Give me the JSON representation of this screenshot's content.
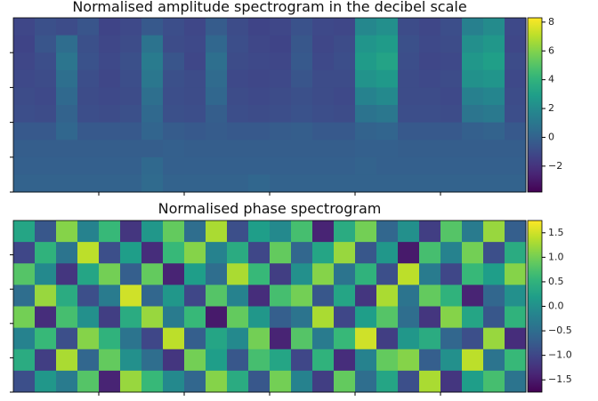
{
  "chart_data": [
    {
      "type": "heatmap",
      "title": "Normalised amplitude spectrogram in the decibel scale",
      "colormap": "viridis",
      "colorbar_lim": [
        -3.8,
        8.3
      ],
      "colorbar_ticks": [
        {
          "value": -2,
          "label": "−2"
        },
        0,
        2,
        4,
        6,
        8
      ],
      "values": [
        [
          -1.2,
          -0.8,
          -1.0,
          -0.6,
          -1.3,
          -1.1,
          -0.4,
          -0.9,
          -1.2,
          -0.3,
          -1.0,
          -1.3,
          -1.2,
          -0.7,
          -1.1,
          -1.2,
          1.8,
          2.2,
          -1.0,
          -1.2,
          -0.9,
          1.5,
          2.0,
          -1.1
        ],
        [
          -1.3,
          -0.6,
          0.5,
          -0.8,
          -1.2,
          -1.0,
          0.8,
          -1.0,
          -1.1,
          0.2,
          -0.9,
          -1.2,
          -1.3,
          -0.5,
          -1.2,
          -1.0,
          2.5,
          2.8,
          -0.8,
          -1.1,
          -1.0,
          2.2,
          2.6,
          -1.2
        ],
        [
          -1.2,
          -0.9,
          0.9,
          -0.7,
          -1.1,
          -0.8,
          1.2,
          -0.6,
          -1.2,
          0.6,
          -1.0,
          -1.1,
          -1.2,
          -0.4,
          -1.1,
          -0.9,
          2.8,
          3.2,
          -0.9,
          -1.2,
          -1.1,
          2.6,
          3.0,
          -1.0
        ],
        [
          -1.1,
          -1.0,
          0.6,
          -0.9,
          -1.2,
          -0.9,
          1.0,
          -0.8,
          -1.0,
          0.4,
          -1.1,
          -1.2,
          -1.1,
          -0.6,
          -1.0,
          -1.0,
          2.4,
          2.7,
          -1.0,
          -1.1,
          -1.0,
          2.3,
          2.5,
          -1.1
        ],
        [
          -1.0,
          -1.1,
          0.3,
          -1.0,
          -1.1,
          -1.0,
          0.6,
          -0.9,
          -1.0,
          0.2,
          -1.0,
          -1.1,
          -1.0,
          -0.8,
          -1.0,
          -1.1,
          1.6,
          1.9,
          -1.0,
          -1.0,
          -1.1,
          1.5,
          1.7,
          -1.0
        ],
        [
          -0.9,
          -1.0,
          0.0,
          -0.9,
          -1.0,
          -0.8,
          0.3,
          -0.8,
          -0.9,
          -0.2,
          -0.9,
          -1.0,
          -0.9,
          -0.7,
          -0.9,
          -1.0,
          0.8,
          1.0,
          -0.9,
          -0.9,
          -1.0,
          0.9,
          1.1,
          -0.9
        ],
        [
          -0.4,
          -0.4,
          0.2,
          -0.4,
          -0.4,
          -0.4,
          0.1,
          -0.3,
          -0.4,
          -0.3,
          -0.4,
          -0.4,
          -0.3,
          -0.2,
          -0.4,
          -0.4,
          0.0,
          0.1,
          -0.4,
          -0.4,
          -0.4,
          -0.1,
          0.0,
          -0.4
        ],
        [
          -0.2,
          -0.2,
          -0.2,
          -0.2,
          -0.2,
          -0.2,
          -0.2,
          -0.1,
          -0.2,
          -0.2,
          -0.2,
          -0.2,
          -0.2,
          -0.2,
          -0.2,
          -0.2,
          -0.1,
          -0.1,
          -0.2,
          -0.2,
          -0.2,
          -0.2,
          -0.2,
          -0.2
        ],
        [
          -0.1,
          -0.1,
          -0.1,
          -0.1,
          -0.1,
          -0.1,
          0.3,
          -0.1,
          -0.1,
          -0.1,
          -0.1,
          -0.1,
          -0.1,
          -0.1,
          -0.1,
          -0.1,
          0.0,
          -0.1,
          -0.1,
          -0.1,
          -0.1,
          -0.1,
          -0.1,
          -0.1
        ],
        [
          0.0,
          0.0,
          0.0,
          0.0,
          0.0,
          0.0,
          0.4,
          0.0,
          0.0,
          0.0,
          0.0,
          0.2,
          0.0,
          0.0,
          0.0,
          0.0,
          0.0,
          0.0,
          0.0,
          0.0,
          0.0,
          0.0,
          0.0,
          0.0
        ]
      ]
    },
    {
      "type": "heatmap",
      "title": "Normalised phase spectrogram",
      "colormap": "viridis",
      "colorbar_lim": [
        -1.75,
        1.75
      ],
      "colorbar_ticks": [
        {
          "value": -1.5,
          "label": "−1.5"
        },
        {
          "value": -1.0,
          "label": "−1.0"
        },
        {
          "value": -0.5,
          "label": "−0.5"
        },
        {
          "value": 0,
          "label": "0.0"
        },
        0.5,
        {
          "value": 1.0,
          "label": "1.0"
        },
        1.5
      ],
      "values": [
        [
          0.3,
          -0.8,
          1.1,
          -0.2,
          0.6,
          -1.2,
          0.1,
          0.9,
          -0.5,
          1.3,
          -0.9,
          0.2,
          -0.1,
          0.7,
          -1.4,
          0.4,
          1.0,
          -0.6,
          0.0,
          -1.1,
          0.8,
          -0.3,
          1.2,
          -0.7
        ],
        [
          -1.0,
          0.5,
          -0.4,
          1.4,
          -0.9,
          0.2,
          -1.3,
          0.6,
          1.1,
          -0.2,
          0.4,
          -1.0,
          0.9,
          -0.6,
          0.3,
          1.2,
          -0.8,
          0.1,
          -1.5,
          0.7,
          -0.2,
          1.0,
          -0.9,
          0.4
        ],
        [
          0.8,
          -0.1,
          -1.2,
          0.3,
          1.0,
          -0.7,
          0.9,
          -1.4,
          0.2,
          -0.5,
          1.3,
          0.6,
          -1.1,
          0.0,
          1.1,
          -0.4,
          0.5,
          -0.9,
          1.4,
          -0.3,
          -1.0,
          0.6,
          0.2,
          1.1
        ],
        [
          -0.5,
          1.2,
          0.4,
          -0.9,
          -0.3,
          1.5,
          -0.6,
          0.1,
          -1.0,
          0.8,
          -0.2,
          -1.3,
          0.7,
          1.0,
          -0.8,
          0.3,
          -1.2,
          1.3,
          -0.4,
          0.9,
          0.5,
          -1.4,
          -0.6,
          0.0
        ],
        [
          1.0,
          -1.3,
          0.7,
          0.0,
          -1.1,
          0.4,
          1.2,
          -0.3,
          0.6,
          -1.5,
          0.9,
          0.1,
          -0.7,
          -0.4,
          1.3,
          -1.0,
          0.2,
          0.8,
          -0.5,
          -1.2,
          1.1,
          0.3,
          -0.8,
          0.5
        ],
        [
          -0.2,
          0.6,
          -0.9,
          1.1,
          0.5,
          -0.4,
          -1.0,
          1.4,
          -0.7,
          0.3,
          -0.1,
          1.0,
          -1.4,
          0.8,
          -0.3,
          0.6,
          1.5,
          -1.1,
          0.1,
          0.4,
          -0.6,
          -0.9,
          1.2,
          -1.3
        ],
        [
          0.4,
          -1.1,
          1.3,
          -0.6,
          0.9,
          0.0,
          -0.5,
          -1.2,
          1.0,
          0.2,
          -0.8,
          0.7,
          0.3,
          -1.0,
          0.5,
          -1.3,
          -0.2,
          0.9,
          1.1,
          -0.7,
          0.0,
          1.4,
          -0.4,
          0.6
        ],
        [
          -0.9,
          0.1,
          -0.3,
          0.8,
          -1.4,
          1.2,
          0.6,
          -0.1,
          -0.6,
          1.1,
          0.4,
          -0.8,
          1.0,
          -0.2,
          -1.1,
          0.9,
          -0.5,
          0.3,
          -0.9,
          1.3,
          -1.2,
          0.2,
          0.7,
          -0.4
        ]
      ]
    }
  ]
}
